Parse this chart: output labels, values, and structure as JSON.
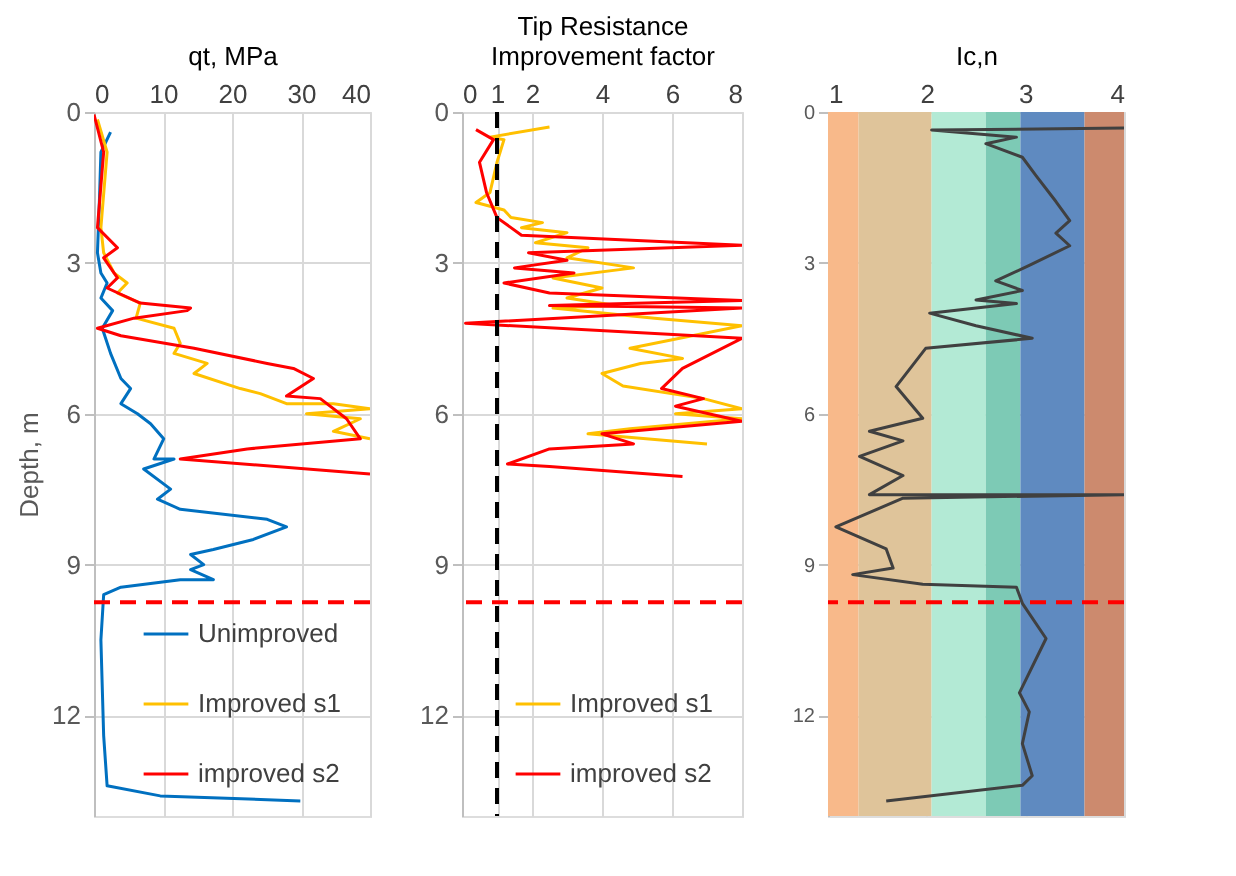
{
  "chart_data": [
    {
      "type": "line",
      "xlabel": "qt, MPa",
      "ylabel": "Depth, m",
      "xlim": [
        0,
        40
      ],
      "xticks": [
        0,
        10,
        20,
        30,
        40
      ],
      "ylim": [
        14,
        0
      ],
      "yticks": [
        0,
        3,
        6,
        9,
        12
      ],
      "grid": true,
      "legend": "bottom right",
      "ref_lines": [
        {
          "axis": "y",
          "value": 9.75,
          "color": "#ff0000",
          "line_style": "dashed"
        }
      ],
      "series": [
        {
          "name": "Unimproved",
          "color": "#0070c0",
          "x": [
            2.4,
            1.0,
            0.8,
            0.5,
            1,
            1.9,
            1,
            2.7,
            1.2,
            2.4,
            3.9,
            5.3,
            3.9,
            6.3,
            8.2,
            10.1,
            8.7,
            11.6,
            7.2,
            11.1,
            9.2,
            12.5,
            25.1,
            27.9,
            23.1,
            17.3,
            14.0,
            15.9,
            14.0,
            17.3,
            12.5,
            3.9,
            1.4,
            1,
            1.4,
            1.9,
            9.6,
            29.9
          ],
          "values": [
            0.4,
            0.8,
            1.7,
            2.8,
            3.2,
            3.4,
            3.7,
            3.95,
            4.3,
            4.8,
            5.3,
            5.5,
            5.8,
            6.0,
            6.2,
            6.5,
            6.9,
            6.9,
            7.1,
            7.5,
            7.7,
            7.9,
            8.1,
            8.25,
            8.5,
            8.7,
            8.8,
            9.0,
            9.1,
            9.3,
            9.3,
            9.45,
            9.6,
            10.5,
            12.4,
            13.4,
            13.6,
            13.7
          ]
        },
        {
          "name": "Improved s1",
          "color": "#ffc000",
          "x": [
            0.5,
            1.9,
            1,
            1.4,
            2.9,
            4.8,
            3.4,
            6.7,
            6.1,
            11.6,
            12.5,
            11.6,
            16.4,
            14.5,
            21.2,
            24.1,
            27.9,
            34.7,
            40,
            30.8,
            38.6,
            34.7,
            40
          ],
          "values": [
            0.15,
            0.8,
            2.3,
            2.8,
            3.2,
            3.4,
            3.6,
            3.8,
            4.1,
            4.3,
            4.6,
            4.8,
            5.0,
            5.2,
            5.5,
            5.6,
            5.8,
            5.8,
            5.9,
            6.0,
            6.1,
            6.35,
            6.5
          ]
        },
        {
          "name": "improved s2",
          "color": "#ff0000",
          "x": [
            0,
            1.4,
            0.5,
            3.4,
            1.4,
            3.4,
            1.9,
            6.7,
            14.0,
            13.5,
            5.8,
            0.5,
            3.9,
            14.5,
            25.1,
            28.9,
            31.8,
            27.9,
            32.8,
            36.6,
            38.6,
            22.2,
            12.5,
            40
          ],
          "values": [
            0.05,
            0.8,
            2.3,
            2.7,
            2.9,
            3.3,
            3.5,
            3.8,
            3.9,
            3.95,
            4.1,
            4.3,
            4.45,
            4.7,
            5.0,
            5.1,
            5.3,
            5.65,
            5.7,
            6.1,
            6.5,
            6.7,
            6.9,
            7.2
          ]
        }
      ]
    },
    {
      "type": "line",
      "xlabel": "Tip Resistance\nImprovement factor",
      "xlim": [
        0,
        8
      ],
      "xticks": [
        0,
        1,
        2,
        4,
        6,
        8
      ],
      "ylim": [
        14,
        0
      ],
      "yticks": [
        0,
        3,
        6,
        9,
        12
      ],
      "grid": true,
      "legend": "bottom right",
      "ref_lines": [
        {
          "axis": "y",
          "value": 9.75,
          "color": "#ff0000",
          "line_style": "dashed"
        },
        {
          "axis": "x",
          "value": 1,
          "color": "#000000",
          "line_style": "dashed"
        }
      ],
      "series": [
        {
          "name": "Improved s1",
          "color": "#ffc000",
          "x": [
            2.5,
            0.8,
            1.2,
            1.0,
            0.8,
            0.4,
            1.2,
            1.4,
            2.3,
            1.7,
            3.0,
            2.1,
            3.6,
            3.0,
            4.9,
            2.6,
            4.0,
            3.0,
            4.4,
            2.6,
            5.5,
            8,
            4.8,
            6.3,
            5.1,
            4.0,
            4.6,
            6.9,
            8,
            6.1,
            8,
            4.8,
            3.6,
            7.0
          ],
          "values": [
            0.3,
            0.5,
            0.55,
            1.0,
            1.6,
            1.8,
            1.95,
            2.1,
            2.2,
            2.3,
            2.4,
            2.6,
            2.7,
            2.9,
            3.1,
            3.3,
            3.5,
            3.7,
            3.85,
            3.9,
            4.1,
            4.25,
            4.7,
            4.9,
            5.0,
            5.2,
            5.45,
            5.7,
            5.9,
            6.0,
            6.1,
            6.3,
            6.4,
            6.6
          ]
        },
        {
          "name": "improved s2",
          "color": "#ff0000",
          "x": [
            0.4,
            0.9,
            0.5,
            0.7,
            1.0,
            1.7,
            8,
            1.9,
            3.0,
            1.5,
            3.2,
            1.2,
            2.5,
            8,
            2.5,
            8,
            0.1,
            8,
            6.3,
            5.7,
            6.9,
            6.1,
            8,
            4.0,
            4.9,
            2.5,
            1.3,
            2.5,
            6.3
          ],
          "values": [
            0.35,
            0.55,
            1.0,
            1.6,
            2.1,
            2.45,
            2.65,
            2.8,
            2.95,
            3.1,
            3.2,
            3.4,
            3.6,
            3.75,
            3.85,
            3.9,
            4.2,
            4.5,
            5.1,
            5.5,
            5.7,
            5.85,
            6.15,
            6.4,
            6.6,
            6.7,
            7.0,
            7.05,
            7.25
          ]
        }
      ]
    },
    {
      "type": "line",
      "xlabel": "Ic,n",
      "xlim": [
        1,
        4
      ],
      "xticks": [
        1,
        2,
        3,
        4
      ],
      "ylim": [
        14,
        0
      ],
      "yticks": [
        0,
        3,
        6,
        9,
        12
      ],
      "grid": true,
      "ref_lines": [
        {
          "axis": "y",
          "value": 9.75,
          "color": "#ff0000",
          "line_style": "dashed"
        }
      ],
      "bands": [
        {
          "axis": "x",
          "from": 1,
          "to": 1.31,
          "color": "#f8b98a"
        },
        {
          "axis": "x",
          "from": 1.31,
          "to": 2.05,
          "color": "#dfc49a"
        },
        {
          "axis": "x",
          "from": 2.05,
          "to": 2.6,
          "color": "#b3ead5"
        },
        {
          "axis": "x",
          "from": 2.6,
          "to": 2.95,
          "color": "#7dcab5"
        },
        {
          "axis": "x",
          "from": 2.95,
          "to": 3.6,
          "color": "#5f8ac0"
        },
        {
          "axis": "x",
          "from": 3.6,
          "to": 4,
          "color": "#cc8a6e"
        }
      ],
      "series": [
        {
          "color": "#404040",
          "x": [
            4.0,
            2.05,
            2.91,
            2.6,
            2.97,
            3.11,
            3.31,
            3.45,
            3.31,
            3.45,
            3.04,
            2.7,
            2.97,
            2.5,
            2.91,
            2.03,
            2.5,
            3.07,
            1.99,
            1.69,
            1.96,
            1.42,
            1.76,
            1.32,
            1.76,
            1.42,
            4.0,
            1.76,
            1.08,
            1.59,
            1.66,
            1.25,
            1.96,
            2.91,
            2.97,
            3.21,
            2.94,
            3.04,
            2.97,
            3.07,
            2.97,
            1.59
          ],
          "values": [
            0.32,
            0.36,
            0.5,
            0.63,
            0.9,
            1.27,
            1.78,
            2.16,
            2.41,
            2.66,
            3.05,
            3.36,
            3.55,
            3.74,
            3.81,
            4.0,
            4.25,
            4.5,
            4.7,
            5.46,
            6.09,
            6.35,
            6.54,
            6.85,
            7.23,
            7.61,
            7.61,
            7.68,
            8.25,
            8.69,
            9.07,
            9.2,
            9.39,
            9.45,
            9.77,
            10.47,
            11.55,
            11.93,
            12.56,
            13.2,
            13.39,
            13.7
          ]
        }
      ]
    }
  ]
}
